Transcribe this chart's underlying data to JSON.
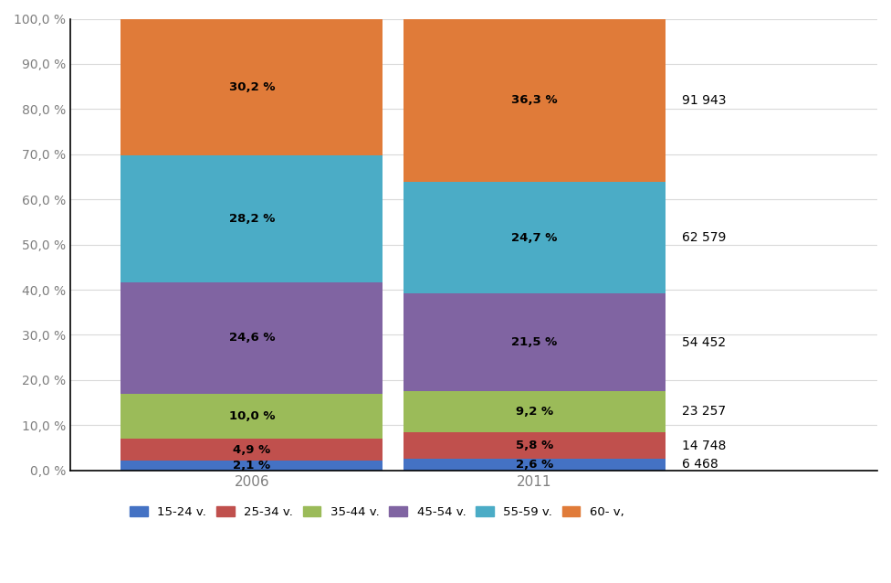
{
  "categories": [
    "2006",
    "2011"
  ],
  "segments": [
    {
      "label": "15-24 v.",
      "color": "#4472C4",
      "values": [
        2.1,
        2.6
      ]
    },
    {
      "label": "25-34 v.",
      "color": "#C0504D",
      "values": [
        4.9,
        5.8
      ]
    },
    {
      "label": "35-44 v.",
      "color": "#9BBB59",
      "values": [
        10.0,
        9.2
      ]
    },
    {
      "label": "45-54 v.",
      "color": "#8064A2",
      "values": [
        24.6,
        21.5
      ]
    },
    {
      "label": "55-59 v.",
      "color": "#4BACC6",
      "values": [
        28.2,
        24.7
      ]
    },
    {
      "label": "60- v,",
      "color": "#E07B39",
      "values": [
        30.2,
        36.3
      ]
    }
  ],
  "bar_labels_2006": [
    "2,1 %",
    "4,9 %",
    "10,0 %",
    "24,6 %",
    "28,2 %",
    "30,2 %"
  ],
  "bar_labels_2011": [
    "2,6 %",
    "5,8 %",
    "9,2 %",
    "21,5 %",
    "24,7 %",
    "36,3 %"
  ],
  "side_labels": [
    "6 468",
    "14 748",
    "23 257",
    "54 452",
    "62 579",
    "91 943"
  ],
  "yticks": [
    0,
    10,
    20,
    30,
    40,
    50,
    60,
    70,
    80,
    90,
    100
  ],
  "ytick_labels": [
    "0,0 %",
    "10,0 %",
    "20,0 %",
    "30,0 %",
    "40,0 %",
    "50,0 %",
    "60,0 %",
    "70,0 %",
    "80,0 %",
    "90,0 %",
    "100,0 %"
  ],
  "bar_width": 0.65,
  "x_positions": [
    0.35,
    1.05
  ],
  "figure_bg": "#FFFFFF",
  "axes_bg": "#FFFFFF",
  "grid_color": "#D9D9D9",
  "tick_color": "#7F7F7F",
  "label_fontsize": 10,
  "legend_labels": [
    "15-24 v.",
    "25-34 v.",
    "35-44 v.",
    "45-54 v.",
    "55-59 v.",
    "60- v,"
  ],
  "legend_colors": [
    "#4472C4",
    "#C0504D",
    "#9BBB59",
    "#8064A2",
    "#4BACC6",
    "#E07B39"
  ]
}
